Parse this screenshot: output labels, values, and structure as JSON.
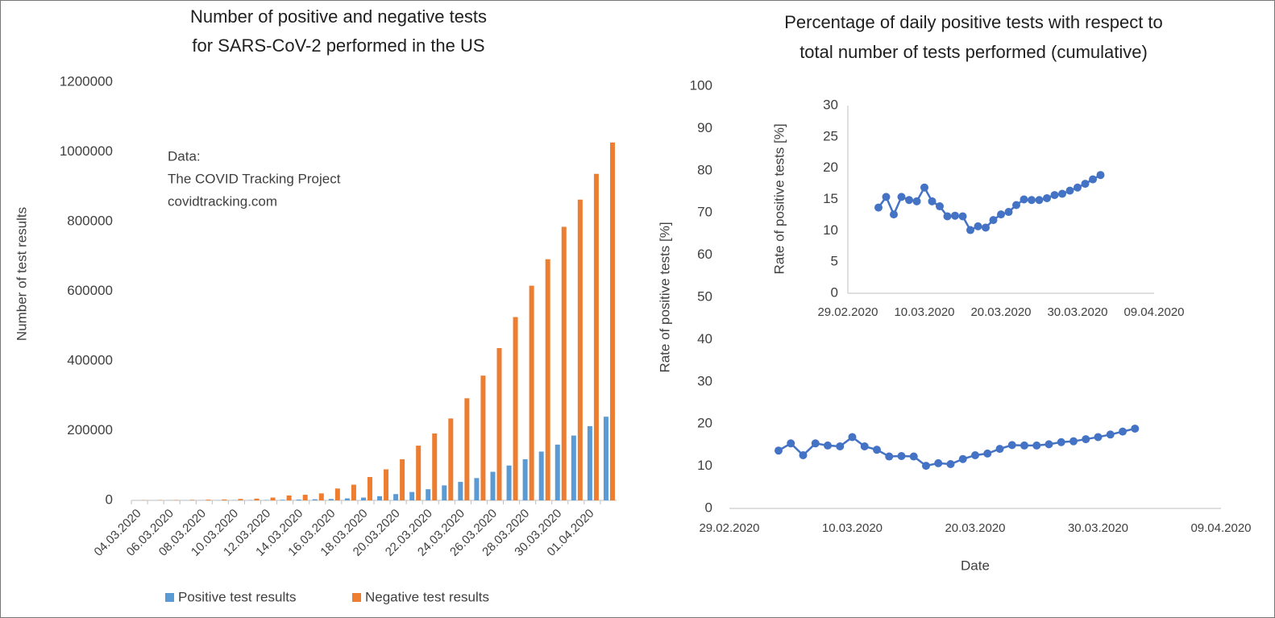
{
  "chart_data": [
    {
      "type": "bar",
      "title": [
        "Number of positive and negative tests",
        "for SARS-CoV-2 performed in the US"
      ],
      "annotation": [
        "Data:",
        "The COVID Tracking Project",
        "covidtracking.com"
      ],
      "ylabel": "Number of test results",
      "categories": [
        "04.03.2020",
        null,
        "06.03.2020",
        null,
        "08.03.2020",
        null,
        "10.03.2020",
        null,
        "12.03.2020",
        null,
        "14.03.2020",
        null,
        "16.03.2020",
        null,
        "18.03.2020",
        null,
        "20.03.2020",
        null,
        "22.03.2020",
        null,
        "24.03.2020",
        null,
        "26.03.2020",
        null,
        "28.03.2020",
        null,
        "30.03.2020",
        null,
        "01.04.2020",
        null
      ],
      "series": [
        {
          "name": "Positive test results",
          "color": "#5b9bd5",
          "values": [
            100,
            150,
            200,
            250,
            300,
            450,
            600,
            800,
            1100,
            1700,
            2300,
            3100,
            4000,
            5700,
            8000,
            12000,
            18000,
            24000,
            32000,
            43000,
            53000,
            64000,
            82000,
            100000,
            118000,
            140000,
            160000,
            186000,
            213000,
            240000
          ]
        },
        {
          "name": "Negative test results",
          "color": "#ed7d31",
          "values": [
            500,
            800,
            1100,
            1500,
            2000,
            2600,
            4000,
            5000,
            8000,
            14000,
            16000,
            20000,
            34000,
            45000,
            67000,
            89000,
            118000,
            157000,
            192000,
            235000,
            293000,
            358000,
            437000,
            526000,
            616000,
            692000,
            785000,
            863000,
            937000,
            1027000
          ]
        }
      ],
      "ylim": [
        0,
        1200000
      ],
      "yticks": [
        0,
        200000,
        400000,
        600000,
        800000,
        1000000,
        1200000
      ],
      "grid": false,
      "legend": "bottom"
    },
    {
      "type": "line",
      "title": [
        "Percentage of daily positive tests with respect to",
        "total number of tests performed (cumulative)"
      ],
      "ylabel": "Rate of positive tests [%]",
      "xlabel": "Date",
      "x": [
        "2020-03-04",
        "2020-03-05",
        "2020-03-06",
        "2020-03-07",
        "2020-03-08",
        "2020-03-09",
        "2020-03-10",
        "2020-03-11",
        "2020-03-12",
        "2020-03-13",
        "2020-03-14",
        "2020-03-15",
        "2020-03-16",
        "2020-03-17",
        "2020-03-18",
        "2020-03-19",
        "2020-03-20",
        "2020-03-21",
        "2020-03-22",
        "2020-03-23",
        "2020-03-24",
        "2020-03-25",
        "2020-03-26",
        "2020-03-27",
        "2020-03-28",
        "2020-03-29",
        "2020-03-30",
        "2020-03-31",
        "2020-04-01",
        "2020-04-02"
      ],
      "series": [
        {
          "color": "#4472c4",
          "values": [
            13.7,
            15.4,
            12.6,
            15.4,
            14.9,
            14.7,
            16.9,
            14.7,
            13.9,
            12.3,
            12.4,
            12.3,
            10.1,
            10.7,
            10.5,
            11.7,
            12.6,
            13.0,
            14.1,
            15.0,
            14.9,
            14.9,
            15.2,
            15.7,
            15.9,
            16.4,
            16.9,
            17.5,
            18.2,
            18.9
          ]
        }
      ],
      "xlim": [
        "2020-02-29",
        "2020-04-09"
      ],
      "xticks": [
        {
          "value": "2020-02-29",
          "label": "29.02.2020"
        },
        {
          "value": "2020-03-10",
          "label": "10.03.2020"
        },
        {
          "value": "2020-03-20",
          "label": "20.03.2020"
        },
        {
          "value": "2020-03-30",
          "label": "30.03.2020"
        },
        {
          "value": "2020-04-09",
          "label": "09.04.2020"
        }
      ],
      "ylim": [
        0,
        100
      ],
      "yticks": [
        0,
        10,
        20,
        30,
        40,
        50,
        60,
        70,
        80,
        90,
        100
      ],
      "grid": false
    },
    {
      "type": "line",
      "ylabel": "Rate of positive tests [%]",
      "x": [
        "2020-03-04",
        "2020-03-05",
        "2020-03-06",
        "2020-03-07",
        "2020-03-08",
        "2020-03-09",
        "2020-03-10",
        "2020-03-11",
        "2020-03-12",
        "2020-03-13",
        "2020-03-14",
        "2020-03-15",
        "2020-03-16",
        "2020-03-17",
        "2020-03-18",
        "2020-03-19",
        "2020-03-20",
        "2020-03-21",
        "2020-03-22",
        "2020-03-23",
        "2020-03-24",
        "2020-03-25",
        "2020-03-26",
        "2020-03-27",
        "2020-03-28",
        "2020-03-29",
        "2020-03-30",
        "2020-03-31",
        "2020-04-01",
        "2020-04-02"
      ],
      "series": [
        {
          "color": "#4472c4",
          "values": [
            13.7,
            15.4,
            12.6,
            15.4,
            14.9,
            14.7,
            16.9,
            14.7,
            13.9,
            12.3,
            12.4,
            12.3,
            10.1,
            10.7,
            10.5,
            11.7,
            12.6,
            13.0,
            14.1,
            15.0,
            14.9,
            14.9,
            15.2,
            15.7,
            15.9,
            16.4,
            16.9,
            17.5,
            18.2,
            18.9
          ]
        }
      ],
      "xlim": [
        "2020-02-29",
        "2020-04-09"
      ],
      "xticks": [
        {
          "value": "2020-02-29",
          "label": "29.02.2020"
        },
        {
          "value": "2020-03-10",
          "label": "10.03.2020"
        },
        {
          "value": "2020-03-20",
          "label": "20.03.2020"
        },
        {
          "value": "2020-03-30",
          "label": "30.03.2020"
        },
        {
          "value": "2020-04-09",
          "label": "09.04.2020"
        }
      ],
      "ylim": [
        0,
        30
      ],
      "yticks": [
        0,
        5,
        10,
        15,
        20,
        25,
        30
      ],
      "grid": false
    }
  ]
}
